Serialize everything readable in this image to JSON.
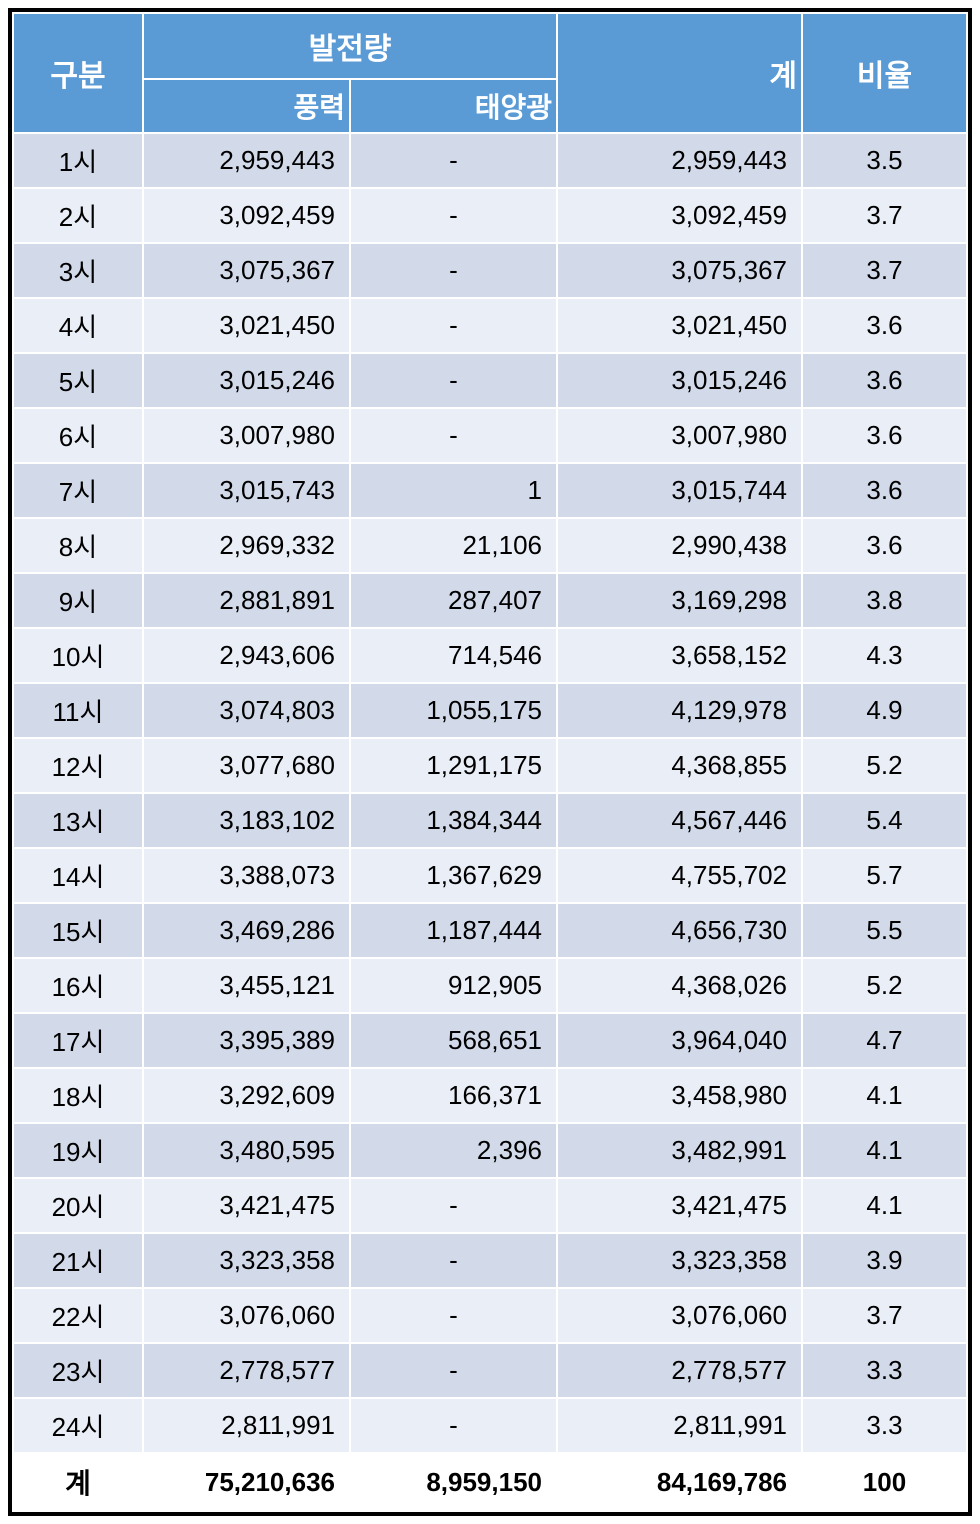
{
  "table": {
    "headers": {
      "category": "구분",
      "generation": "발전량",
      "wind": "풍력",
      "solar": "태양광",
      "total": "계",
      "ratio": "비율"
    },
    "colors": {
      "header_bg": "#5b9bd5",
      "header_text": "#ffffff",
      "row_odd_bg": "#d2daea",
      "row_even_bg": "#eaeef7",
      "row_total_bg": "#ffffff",
      "border": "#ffffff",
      "outer_border": "#000000",
      "text": "#000000"
    },
    "column_widths": {
      "label": 130,
      "wind": 215,
      "solar": 205,
      "total": 245,
      "ratio": 165
    },
    "font_sizes": {
      "header_main": 30,
      "header_sub": 28,
      "body": 26,
      "total_label": 28
    },
    "rows": [
      {
        "label": "1시",
        "wind": "2,959,443",
        "solar": "-",
        "total": "2,959,443",
        "ratio": "3.5"
      },
      {
        "label": "2시",
        "wind": "3,092,459",
        "solar": "-",
        "total": "3,092,459",
        "ratio": "3.7"
      },
      {
        "label": "3시",
        "wind": "3,075,367",
        "solar": "-",
        "total": "3,075,367",
        "ratio": "3.7"
      },
      {
        "label": "4시",
        "wind": "3,021,450",
        "solar": "-",
        "total": "3,021,450",
        "ratio": "3.6"
      },
      {
        "label": "5시",
        "wind": "3,015,246",
        "solar": "-",
        "total": "3,015,246",
        "ratio": "3.6"
      },
      {
        "label": "6시",
        "wind": "3,007,980",
        "solar": "-",
        "total": "3,007,980",
        "ratio": "3.6"
      },
      {
        "label": "7시",
        "wind": "3,015,743",
        "solar": "1",
        "total": "3,015,744",
        "ratio": "3.6"
      },
      {
        "label": "8시",
        "wind": "2,969,332",
        "solar": "21,106",
        "total": "2,990,438",
        "ratio": "3.6"
      },
      {
        "label": "9시",
        "wind": "2,881,891",
        "solar": "287,407",
        "total": "3,169,298",
        "ratio": "3.8"
      },
      {
        "label": "10시",
        "wind": "2,943,606",
        "solar": "714,546",
        "total": "3,658,152",
        "ratio": "4.3"
      },
      {
        "label": "11시",
        "wind": "3,074,803",
        "solar": "1,055,175",
        "total": "4,129,978",
        "ratio": "4.9"
      },
      {
        "label": "12시",
        "wind": "3,077,680",
        "solar": "1,291,175",
        "total": "4,368,855",
        "ratio": "5.2"
      },
      {
        "label": "13시",
        "wind": "3,183,102",
        "solar": "1,384,344",
        "total": "4,567,446",
        "ratio": "5.4"
      },
      {
        "label": "14시",
        "wind": "3,388,073",
        "solar": "1,367,629",
        "total": "4,755,702",
        "ratio": "5.7"
      },
      {
        "label": "15시",
        "wind": "3,469,286",
        "solar": "1,187,444",
        "total": "4,656,730",
        "ratio": "5.5"
      },
      {
        "label": "16시",
        "wind": "3,455,121",
        "solar": "912,905",
        "total": "4,368,026",
        "ratio": "5.2"
      },
      {
        "label": "17시",
        "wind": "3,395,389",
        "solar": "568,651",
        "total": "3,964,040",
        "ratio": "4.7"
      },
      {
        "label": "18시",
        "wind": "3,292,609",
        "solar": "166,371",
        "total": "3,458,980",
        "ratio": "4.1"
      },
      {
        "label": "19시",
        "wind": "3,480,595",
        "solar": "2,396",
        "total": "3,482,991",
        "ratio": "4.1"
      },
      {
        "label": "20시",
        "wind": "3,421,475",
        "solar": "-",
        "total": "3,421,475",
        "ratio": "4.1"
      },
      {
        "label": "21시",
        "wind": "3,323,358",
        "solar": "-",
        "total": "3,323,358",
        "ratio": "3.9"
      },
      {
        "label": "22시",
        "wind": "3,076,060",
        "solar": "-",
        "total": "3,076,060",
        "ratio": "3.7"
      },
      {
        "label": "23시",
        "wind": "2,778,577",
        "solar": "-",
        "total": "2,778,577",
        "ratio": "3.3"
      },
      {
        "label": "24시",
        "wind": "2,811,991",
        "solar": "-",
        "total": "2,811,991",
        "ratio": "3.3"
      }
    ],
    "total_row": {
      "label": "계",
      "wind": "75,210,636",
      "solar": "8,959,150",
      "total": "84,169,786",
      "ratio": "100"
    }
  }
}
